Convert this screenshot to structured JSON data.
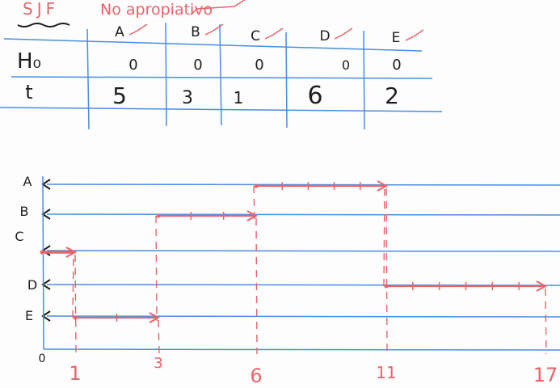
{
  "header": {
    "algorithm": "SJF",
    "mode": "No apropiativo"
  },
  "table": {
    "columns": [
      "A",
      "B",
      "C",
      "D",
      "E"
    ],
    "rows": [
      {
        "label": "H₀",
        "values": [
          "0",
          "0",
          "0",
          "0",
          "0"
        ]
      },
      {
        "label": "t",
        "values": [
          "5",
          "3",
          "1",
          "6",
          "2"
        ]
      }
    ]
  },
  "gantt": {
    "origin_label": "0",
    "processes": [
      "A",
      "B",
      "C",
      "D",
      "E"
    ],
    "time_labels": [
      "1",
      "3",
      "6",
      "11",
      "17"
    ],
    "bars": [
      {
        "process": "C",
        "start": 0,
        "end": 1
      },
      {
        "process": "E",
        "start": 1,
        "end": 3
      },
      {
        "process": "B",
        "start": 3,
        "end": 6
      },
      {
        "process": "A",
        "start": 6,
        "end": 11
      },
      {
        "process": "D",
        "start": 11,
        "end": 17
      }
    ]
  },
  "colors": {
    "grid": "#4a8ee0",
    "ink": "#e8636b",
    "text": "#1e1e1e"
  }
}
